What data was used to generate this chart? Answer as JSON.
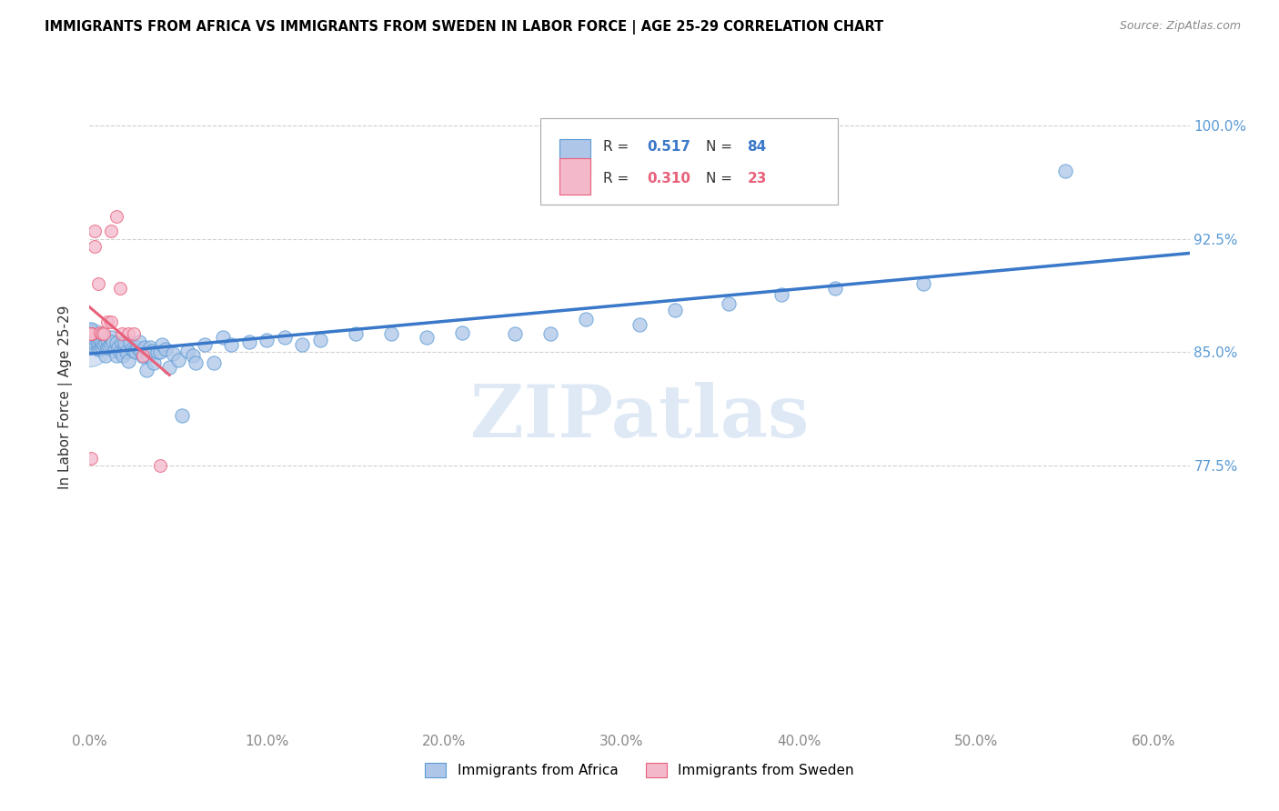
{
  "title": "IMMIGRANTS FROM AFRICA VS IMMIGRANTS FROM SWEDEN IN LABOR FORCE | AGE 25-29 CORRELATION CHART",
  "source": "Source: ZipAtlas.com",
  "ylabel": "In Labor Force | Age 25-29",
  "xlim": [
    0.0,
    0.62
  ],
  "ylim": [
    0.6,
    1.04
  ],
  "legend_labels": [
    "Immigrants from Africa",
    "Immigrants from Sweden"
  ],
  "africa_color": "#aec6e8",
  "sweden_color": "#f4b8cb",
  "africa_edge_color": "#5b9bd5",
  "sweden_edge_color": "#e8607a",
  "africa_line_color": "#3a78c9",
  "sweden_line_color": "#e8607a",
  "africa_R": "0.517",
  "africa_N": "84",
  "sweden_R": "0.310",
  "sweden_N": "23",
  "watermark": "ZIPatlas",
  "africa_x": [
    0.001,
    0.001,
    0.001,
    0.001,
    0.001,
    0.001,
    0.001,
    0.001,
    0.001,
    0.001,
    0.005,
    0.005,
    0.006,
    0.006,
    0.007,
    0.007,
    0.008,
    0.009,
    0.009,
    0.01,
    0.01,
    0.011,
    0.012,
    0.012,
    0.013,
    0.014,
    0.015,
    0.015,
    0.016,
    0.017,
    0.018,
    0.019,
    0.02,
    0.02,
    0.021,
    0.022,
    0.023,
    0.024,
    0.025,
    0.026,
    0.027,
    0.028,
    0.029,
    0.03,
    0.031,
    0.032,
    0.033,
    0.034,
    0.035,
    0.036,
    0.038,
    0.04,
    0.041,
    0.043,
    0.045,
    0.047,
    0.05,
    0.052,
    0.055,
    0.058,
    0.06,
    0.065,
    0.07,
    0.075,
    0.08,
    0.09,
    0.1,
    0.11,
    0.12,
    0.13,
    0.15,
    0.17,
    0.19,
    0.21,
    0.24,
    0.26,
    0.28,
    0.31,
    0.33,
    0.36,
    0.39,
    0.42,
    0.47,
    0.55
  ],
  "africa_y": [
    0.855,
    0.855,
    0.857,
    0.858,
    0.86,
    0.861,
    0.862,
    0.863,
    0.864,
    0.865,
    0.852,
    0.856,
    0.852,
    0.858,
    0.853,
    0.856,
    0.855,
    0.848,
    0.856,
    0.853,
    0.858,
    0.854,
    0.855,
    0.86,
    0.857,
    0.851,
    0.848,
    0.856,
    0.853,
    0.85,
    0.856,
    0.848,
    0.853,
    0.856,
    0.85,
    0.844,
    0.856,
    0.852,
    0.851,
    0.85,
    0.853,
    0.857,
    0.85,
    0.847,
    0.853,
    0.838,
    0.848,
    0.853,
    0.851,
    0.843,
    0.85,
    0.85,
    0.855,
    0.852,
    0.84,
    0.849,
    0.845,
    0.808,
    0.851,
    0.848,
    0.843,
    0.855,
    0.843,
    0.86,
    0.855,
    0.857,
    0.858,
    0.86,
    0.855,
    0.858,
    0.862,
    0.862,
    0.86,
    0.863,
    0.862,
    0.862,
    0.872,
    0.868,
    0.878,
    0.882,
    0.888,
    0.892,
    0.895,
    0.97
  ],
  "sweden_x": [
    0.001,
    0.001,
    0.001,
    0.001,
    0.001,
    0.001,
    0.003,
    0.003,
    0.005,
    0.006,
    0.007,
    0.008,
    0.01,
    0.012,
    0.012,
    0.015,
    0.017,
    0.018,
    0.022,
    0.025,
    0.03,
    0.04,
    0.001
  ],
  "sweden_y": [
    0.862,
    0.862,
    0.862,
    0.862,
    0.862,
    0.862,
    0.92,
    0.93,
    0.895,
    0.863,
    0.862,
    0.862,
    0.87,
    0.87,
    0.93,
    0.94,
    0.892,
    0.862,
    0.862,
    0.862,
    0.848,
    0.775,
    0.78
  ],
  "xticks": [
    0.0,
    0.1,
    0.2,
    0.3,
    0.4,
    0.5,
    0.6
  ],
  "xticklabels": [
    "0.0%",
    "10.0%",
    "20.0%",
    "30.0%",
    "40.0%",
    "50.0%",
    "60.0%"
  ],
  "yticks": [
    0.775,
    0.85,
    0.925,
    1.0
  ],
  "yticklabels_right": [
    "77.5%",
    "85.0%",
    "92.5%",
    "100.0%"
  ],
  "grid_color": "#d0d0d0",
  "tick_color": "#888888",
  "right_tick_color": "#5b9bd5"
}
